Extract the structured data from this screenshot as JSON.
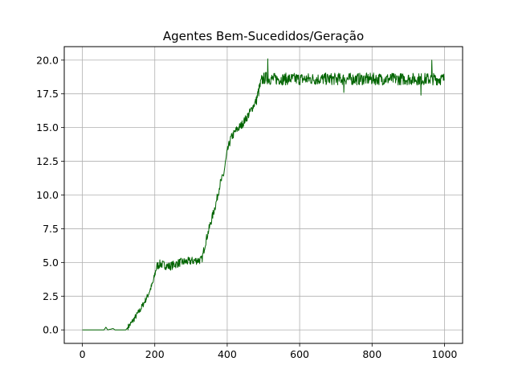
{
  "chart_data": {
    "type": "line",
    "title": "Agentes Bem-Sucedidos/Geração",
    "xlabel": "",
    "ylabel": "",
    "xlim": [
      -50,
      1050
    ],
    "ylim": [
      -1.0,
      21.0
    ],
    "xticks": [
      0,
      200,
      400,
      600,
      800,
      1000
    ],
    "yticks": [
      0.0,
      2.5,
      5.0,
      7.5,
      10.0,
      12.5,
      15.0,
      17.5,
      20.0
    ],
    "xtick_labels": [
      "0",
      "200",
      "400",
      "600",
      "800",
      "1000"
    ],
    "ytick_labels": [
      "0.0",
      "2.5",
      "5.0",
      "7.5",
      "10.0",
      "12.5",
      "15.0",
      "17.5",
      "20.0"
    ],
    "grid": true,
    "legend": "none",
    "series": [
      {
        "color": "#006400",
        "x_range": [
          0,
          999
        ],
        "trend": [
          [
            0,
            0
          ],
          [
            60,
            0
          ],
          [
            65,
            0.2
          ],
          [
            70,
            0
          ],
          [
            85,
            0.1
          ],
          [
            90,
            0
          ],
          [
            120,
            0
          ],
          [
            135,
            0.5
          ],
          [
            160,
            1.5
          ],
          [
            180,
            2.5
          ],
          [
            195,
            3.5
          ],
          [
            205,
            4.7
          ],
          [
            215,
            4.9
          ],
          [
            240,
            4.7
          ],
          [
            270,
            5.0
          ],
          [
            300,
            5.1
          ],
          [
            330,
            5.2
          ],
          [
            340,
            6.5
          ],
          [
            355,
            8.0
          ],
          [
            370,
            9.5
          ],
          [
            380,
            10.8
          ],
          [
            390,
            11.5
          ],
          [
            400,
            13.2
          ],
          [
            410,
            14.2
          ],
          [
            425,
            14.8
          ],
          [
            440,
            15.2
          ],
          [
            460,
            16.0
          ],
          [
            480,
            17.0
          ],
          [
            495,
            18.5
          ],
          [
            505,
            18.7
          ],
          [
            520,
            18.6
          ],
          [
            1000,
            18.6
          ]
        ],
        "spikes": [
          [
            512,
            20.1
          ],
          [
            965,
            20.0
          ],
          [
            722,
            17.6
          ],
          [
            935,
            17.4
          ],
          [
            1000,
            17.5
          ]
        ],
        "noise_amplitude": 0.45
      }
    ]
  }
}
